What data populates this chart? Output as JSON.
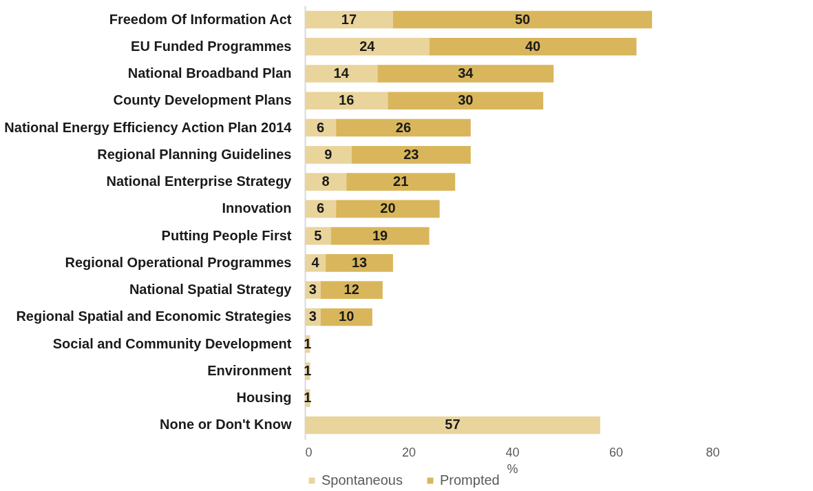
{
  "chart_data": {
    "type": "bar",
    "orientation": "horizontal",
    "stacked": true,
    "xlabel": "%",
    "categories": [
      "Freedom Of Information Act",
      "EU Funded Programmes",
      "National Broadband Plan",
      "County Development Plans",
      "National Energy Efficiency Action Plan 2014",
      "Regional Planning Guidelines",
      "National Enterprise Strategy",
      "Innovation",
      "Putting People First",
      "Regional Operational Programmes",
      "National Spatial Strategy",
      "Regional Spatial and Economic Strategies",
      "Social and Community Development",
      "Environment",
      "Housing",
      "None or Don't Know"
    ],
    "series": [
      {
        "name": "Spontaneous",
        "color": "#e9d49c",
        "values": [
          17,
          24,
          14,
          16,
          6,
          9,
          8,
          6,
          5,
          4,
          3,
          3,
          1,
          1,
          1,
          57
        ]
      },
      {
        "name": "Prompted",
        "color": "#d9b65b",
        "values": [
          50,
          40,
          34,
          30,
          26,
          23,
          21,
          20,
          19,
          13,
          12,
          10,
          null,
          null,
          null,
          null
        ]
      }
    ],
    "xlim": [
      0,
      80
    ],
    "xticks": [
      0,
      20,
      40,
      60,
      80
    ],
    "grid": false,
    "legend": "bottom",
    "data_labels": true
  }
}
